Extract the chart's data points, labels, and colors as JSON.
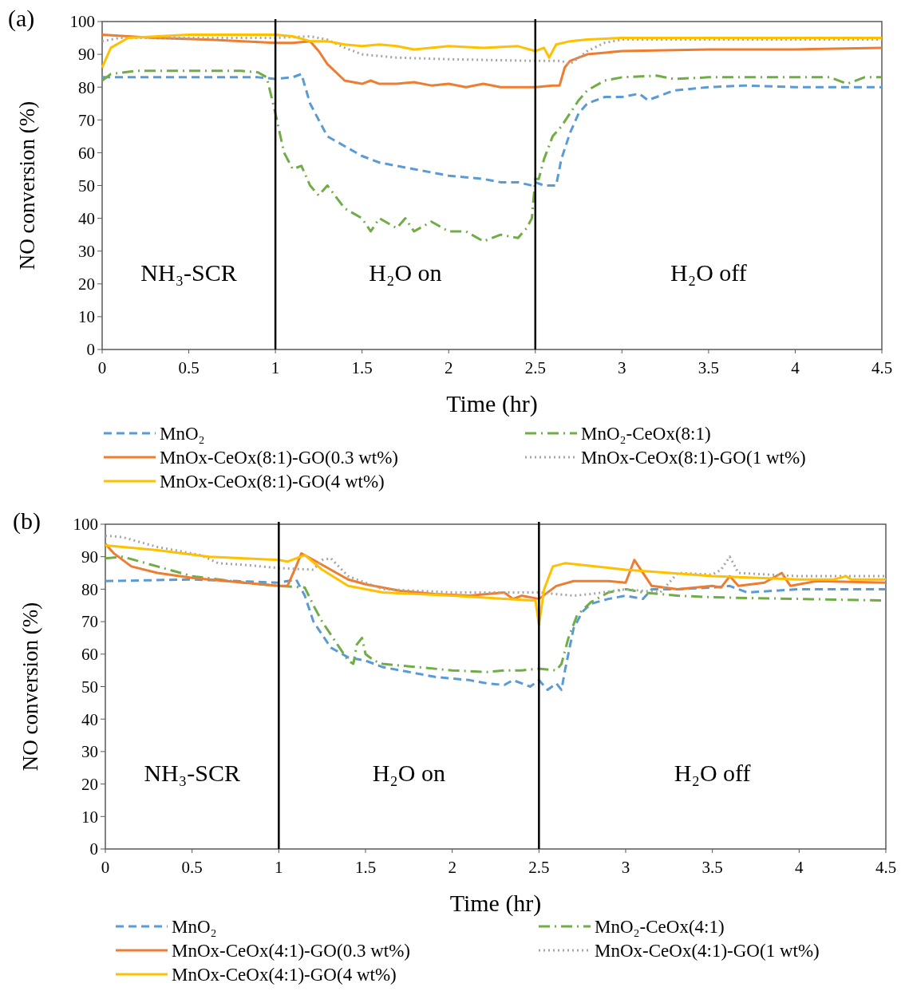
{
  "chart_data": [
    {
      "type": "line",
      "title": "(a)",
      "xlabel": "Time (hr)",
      "ylabel": "NO conversion (%)",
      "xlim": [
        0,
        4.5
      ],
      "xticks": [
        0,
        0.5,
        1,
        1.5,
        2,
        2.5,
        3,
        3.5,
        4,
        4.5
      ],
      "ylim": [
        0,
        100
      ],
      "yticks": [
        0,
        10,
        20,
        30,
        40,
        50,
        60,
        70,
        80,
        90,
        100
      ],
      "legend": "bottom",
      "marker": "none",
      "ref_lines": [
        {
          "axis": "x",
          "value": 1,
          "color": "#000000"
        },
        {
          "axis": "x",
          "value": 2.5,
          "color": "#000000"
        }
      ],
      "annotations": [
        "NH₃-SCR",
        "H₂O on",
        "H₂O off"
      ],
      "series": [
        {
          "name": "MnO₂",
          "color": "#5b9bd5",
          "line_style": "dashed",
          "x": [
            0,
            0.5,
            0.9,
            1.0,
            1.1,
            1.15,
            1.2,
            1.3,
            1.4,
            1.5,
            1.6,
            1.7,
            1.8,
            1.9,
            2.0,
            2.1,
            2.2,
            2.3,
            2.4,
            2.48,
            2.5,
            2.55,
            2.62,
            2.65,
            2.7,
            2.75,
            2.8,
            2.9,
            3.0,
            3.1,
            3.15,
            3.3,
            3.5,
            3.7,
            4.0,
            4.2,
            4.5
          ],
          "values": [
            83,
            83,
            83,
            82.5,
            83,
            84,
            75,
            65,
            62,
            59,
            57,
            56,
            55,
            54,
            53,
            52.5,
            52,
            51,
            51,
            50,
            51,
            50,
            50,
            58,
            66,
            72,
            75,
            77,
            77,
            78,
            76,
            79,
            80,
            80.5,
            80,
            80,
            80
          ]
        },
        {
          "name": "MnO₂-CeOx(8:1)",
          "color": "#70ad47",
          "line_style": "dashdot",
          "x": [
            0,
            0.05,
            0.2,
            0.5,
            0.8,
            0.9,
            0.95,
            1.0,
            1.05,
            1.1,
            1.15,
            1.2,
            1.25,
            1.3,
            1.4,
            1.5,
            1.55,
            1.6,
            1.7,
            1.75,
            1.8,
            1.9,
            2.0,
            2.1,
            2.2,
            2.3,
            2.4,
            2.45,
            2.48,
            2.5,
            2.52,
            2.55,
            2.6,
            2.65,
            2.7,
            2.75,
            2.8,
            2.9,
            3.0,
            3.2,
            3.3,
            3.5,
            3.8,
            4.0,
            4.2,
            4.3,
            4.4,
            4.5
          ],
          "values": [
            82,
            84,
            85,
            85,
            85,
            84.5,
            83,
            72,
            60,
            55,
            56,
            50,
            47,
            50,
            43,
            40,
            36,
            40,
            37,
            40,
            36,
            39,
            36,
            36,
            33,
            35,
            34,
            37,
            40,
            52,
            52,
            58,
            65,
            68,
            72,
            76,
            79,
            82,
            83,
            83.5,
            82.5,
            83,
            83,
            83,
            83,
            81,
            83,
            83
          ]
        },
        {
          "name": "MnOx-CeOx(8:1)-GO(0.3 wt%)",
          "color": "#ed7d31",
          "line_style": "solid",
          "x": [
            0,
            0.3,
            0.6,
            1.0,
            1.1,
            1.2,
            1.25,
            1.3,
            1.4,
            1.5,
            1.55,
            1.6,
            1.7,
            1.8,
            1.9,
            2.0,
            2.1,
            2.2,
            2.3,
            2.4,
            2.5,
            2.6,
            2.64,
            2.67,
            2.7,
            2.8,
            3.0,
            3.5,
            4.0,
            4.5
          ],
          "values": [
            96,
            95,
            94.5,
            93.5,
            93.5,
            94,
            91,
            87,
            82,
            81,
            82,
            81,
            81,
            81.5,
            80.5,
            81,
            80,
            81,
            80,
            80,
            80,
            80.5,
            80.5,
            86,
            88,
            90,
            91,
            91.5,
            91.5,
            92
          ]
        },
        {
          "name": "MnOx-CeOx(8:1)-GO(1 wt%)",
          "color": "#a5a5a5",
          "line_style": "dotted",
          "x": [
            0,
            0.1,
            0.5,
            1.0,
            1.2,
            1.3,
            1.4,
            1.5,
            1.7,
            2.0,
            2.5,
            2.65,
            2.7,
            2.8,
            2.9,
            3.0,
            3.5,
            4.5
          ],
          "values": [
            94,
            95,
            95,
            95,
            95.5,
            94.5,
            92,
            90,
            89,
            88.5,
            88,
            88,
            87,
            91,
            93.5,
            94.5,
            94.5,
            94.5
          ]
        },
        {
          "name": "MnOx-CeOx(8:1)-GO(4 wt%)",
          "color": "#ffc000",
          "line_style": "solid",
          "x": [
            0,
            0.05,
            0.15,
            0.5,
            1.0,
            1.1,
            1.2,
            1.3,
            1.4,
            1.5,
            1.6,
            1.7,
            1.8,
            2.0,
            2.2,
            2.4,
            2.5,
            2.55,
            2.58,
            2.62,
            2.7,
            2.8,
            3.0,
            4.5
          ],
          "values": [
            86,
            92,
            95,
            96,
            96,
            95.5,
            94,
            94,
            93,
            92.5,
            93,
            92.5,
            91.5,
            92.5,
            92,
            92.5,
            91,
            92,
            89,
            93,
            94,
            94.5,
            95,
            95
          ]
        }
      ]
    },
    {
      "type": "line",
      "title": "(b)",
      "xlabel": "Time (hr)",
      "ylabel": "NO conversion (%)",
      "xlim": [
        0,
        4.5
      ],
      "xticks": [
        0,
        0.5,
        1,
        1.5,
        2,
        2.5,
        3,
        3.5,
        4,
        4.5
      ],
      "ylim": [
        0,
        100
      ],
      "yticks": [
        0,
        10,
        20,
        30,
        40,
        50,
        60,
        70,
        80,
        90,
        100
      ],
      "legend": "bottom",
      "marker": "none",
      "ref_lines": [
        {
          "axis": "x",
          "value": 1,
          "color": "#000000"
        },
        {
          "axis": "x",
          "value": 2.5,
          "color": "#000000"
        }
      ],
      "annotations": [
        "NH₃-SCR",
        "H₂O on",
        "H₂O off"
      ],
      "series": [
        {
          "name": "MnO₂",
          "color": "#5b9bd5",
          "line_style": "dashed",
          "x": [
            0,
            0.5,
            1.0,
            1.1,
            1.15,
            1.2,
            1.3,
            1.4,
            1.5,
            1.6,
            1.7,
            1.8,
            1.9,
            2.0,
            2.1,
            2.2,
            2.3,
            2.35,
            2.4,
            2.45,
            2.5,
            2.55,
            2.6,
            2.63,
            2.65,
            2.7,
            2.75,
            2.8,
            2.9,
            3.0,
            3.1,
            3.15,
            3.3,
            3.5,
            3.6,
            3.7,
            4.0,
            4.5
          ],
          "values": [
            82.5,
            83,
            82,
            83,
            78,
            70,
            62,
            59,
            58,
            56,
            55,
            54,
            53,
            52.5,
            52,
            51,
            50.5,
            52,
            51,
            50,
            52,
            49,
            51,
            49,
            55,
            68,
            73,
            75.5,
            77,
            78,
            77,
            80,
            80,
            80.5,
            81,
            79,
            80,
            80
          ]
        },
        {
          "name": "MnO₂-CeOx(4:1)",
          "color": "#70ad47",
          "line_style": "dashdot",
          "x": [
            0,
            0.1,
            0.3,
            0.5,
            0.8,
            1.0,
            1.15,
            1.2,
            1.25,
            1.3,
            1.35,
            1.4,
            1.43,
            1.45,
            1.48,
            1.5,
            1.55,
            1.6,
            1.8,
            2.0,
            2.2,
            2.3,
            2.4,
            2.5,
            2.6,
            2.63,
            2.67,
            2.72,
            2.8,
            2.9,
            3.0,
            3.1,
            3.3,
            3.5,
            4.0,
            4.5
          ],
          "values": [
            89.5,
            90,
            87,
            84,
            82,
            81,
            80.5,
            75,
            70,
            66,
            62,
            58,
            57,
            63,
            65,
            60,
            58,
            57,
            56,
            55,
            54.5,
            55,
            55,
            55.5,
            55,
            57,
            65,
            72,
            76,
            79,
            80,
            79,
            78,
            77.5,
            77,
            76.5
          ]
        },
        {
          "name": "MnOx-CeOx(4:1)-GO(0.3 wt%)",
          "color": "#ed7d31",
          "line_style": "solid",
          "x": [
            0,
            0.05,
            0.15,
            0.3,
            0.5,
            0.8,
            1.0,
            1.05,
            1.1,
            1.13,
            1.2,
            1.3,
            1.4,
            1.5,
            1.7,
            1.9,
            2.1,
            2.3,
            2.35,
            2.4,
            2.5,
            2.6,
            2.7,
            2.9,
            3.0,
            3.05,
            3.1,
            3.15,
            3.3,
            3.5,
            3.55,
            3.6,
            3.65,
            3.8,
            3.9,
            3.95,
            4.1,
            4.5
          ],
          "values": [
            94,
            91,
            87,
            85,
            83.5,
            82,
            81,
            81,
            87,
            91,
            89,
            86,
            83,
            81.5,
            79.5,
            78.5,
            78,
            79,
            77,
            78,
            77,
            81,
            82.5,
            82.5,
            82,
            89,
            85,
            81,
            80,
            81,
            80.5,
            84,
            81,
            82,
            85,
            81,
            82.5,
            82
          ]
        },
        {
          "name": "MnOx-CeOx(4:1)-GO(1 wt%)",
          "color": "#a5a5a5",
          "line_style": "dotted",
          "x": [
            0,
            0.1,
            0.3,
            0.55,
            0.65,
            0.8,
            1.0,
            1.2,
            1.25,
            1.3,
            1.4,
            1.6,
            2.0,
            2.5,
            2.7,
            2.8,
            3.0,
            3.2,
            3.3,
            3.5,
            3.55,
            3.6,
            3.65,
            4.0,
            4.5
          ],
          "values": [
            96.5,
            96,
            93,
            90.5,
            88,
            87.5,
            86.5,
            86,
            89,
            89.5,
            84,
            80,
            79,
            79,
            78,
            78.5,
            80,
            79,
            85,
            84.5,
            86,
            90,
            85,
            84,
            84
          ]
        },
        {
          "name": "MnOx-CeOx(4:1)-GO(4 wt%)",
          "color": "#ffc000",
          "line_style": "solid",
          "x": [
            0,
            0.3,
            0.6,
            1.0,
            1.05,
            1.15,
            1.25,
            1.4,
            1.6,
            2.0,
            2.3,
            2.48,
            2.5,
            2.53,
            2.58,
            2.65,
            3.0,
            3.5,
            4.0,
            4.2,
            4.27,
            4.3,
            4.5
          ],
          "values": [
            93.5,
            92,
            90,
            89,
            88.5,
            90.5,
            86,
            81,
            79,
            78,
            77,
            76.5,
            69,
            80,
            87,
            88,
            86,
            84,
            83,
            83,
            84,
            83,
            83
          ]
        }
      ]
    }
  ]
}
